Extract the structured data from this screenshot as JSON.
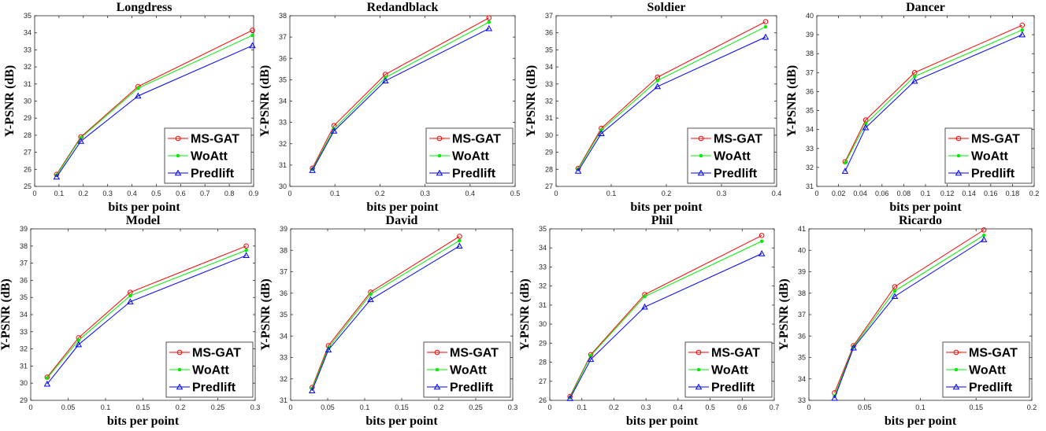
{
  "chart_data": [
    {
      "type": "line",
      "title": "Longdress",
      "xlabel": "bits per point",
      "ylabel": "Y-PSNR (dB)",
      "xlim": [
        0,
        0.9
      ],
      "ylim": [
        25,
        35
      ],
      "xticks": [
        "0",
        "0.1",
        "0.2",
        "0.3",
        "0.4",
        "0.5",
        "0.6",
        "0.7",
        "0.8",
        "0.9"
      ],
      "yticks": [
        "25",
        "26",
        "27",
        "28",
        "29",
        "30",
        "31",
        "32",
        "33",
        "34",
        "35"
      ],
      "legend": "bottom-right",
      "grid": false,
      "series": [
        {
          "name": "MS-GAT",
          "color": "#ff0000",
          "marker": "circle",
          "x": [
            0.09,
            0.19,
            0.425,
            0.895
          ],
          "y": [
            25.7,
            27.9,
            30.85,
            34.15
          ]
        },
        {
          "name": "WoAtt",
          "color": "#00ee00",
          "marker": "dot",
          "x": [
            0.09,
            0.19,
            0.425,
            0.895
          ],
          "y": [
            25.65,
            27.85,
            30.75,
            33.85
          ]
        },
        {
          "name": "Predlift",
          "color": "#0000ff",
          "marker": "triangle",
          "x": [
            0.09,
            0.19,
            0.425,
            0.895
          ],
          "y": [
            25.55,
            27.65,
            30.3,
            33.25
          ]
        }
      ]
    },
    {
      "type": "line",
      "title": "Redandblack",
      "xlabel": "bits per point",
      "ylabel": "Y-PSNR (dB)",
      "xlim": [
        0,
        0.5
      ],
      "ylim": [
        30,
        38
      ],
      "xticks": [
        "0",
        "0.1",
        "0.2",
        "0.3",
        "0.4",
        "0.5"
      ],
      "yticks": [
        "30",
        "31",
        "32",
        "33",
        "34",
        "35",
        "36",
        "37",
        "38"
      ],
      "legend": "bottom-right",
      "grid": false,
      "series": [
        {
          "name": "MS-GAT",
          "color": "#ff0000",
          "marker": "circle",
          "x": [
            0.05,
            0.098,
            0.212,
            0.442
          ],
          "y": [
            30.85,
            32.85,
            35.25,
            37.9
          ]
        },
        {
          "name": "WoAtt",
          "color": "#00ee00",
          "marker": "dot",
          "x": [
            0.05,
            0.098,
            0.212,
            0.442
          ],
          "y": [
            30.8,
            32.7,
            35.1,
            37.7
          ]
        },
        {
          "name": "Predlift",
          "color": "#0000ff",
          "marker": "triangle",
          "x": [
            0.05,
            0.098,
            0.212,
            0.442
          ],
          "y": [
            30.75,
            32.6,
            34.95,
            37.4
          ]
        }
      ]
    },
    {
      "type": "line",
      "title": "Soldier",
      "xlabel": "bits per point",
      "ylabel": "Y-PSNR (dB)",
      "xlim": [
        0,
        0.4
      ],
      "ylim": [
        27,
        37
      ],
      "xticks": [
        "0",
        "0.1",
        "0.2",
        "0.3",
        "0.4"
      ],
      "yticks": [
        "27",
        "28",
        "29",
        "30",
        "31",
        "32",
        "33",
        "34",
        "35",
        "36",
        "37"
      ],
      "legend": "bottom-right",
      "grid": false,
      "series": [
        {
          "name": "MS-GAT",
          "color": "#ff0000",
          "marker": "circle",
          "x": [
            0.04,
            0.082,
            0.184,
            0.38
          ],
          "y": [
            28.05,
            30.4,
            33.4,
            36.65
          ]
        },
        {
          "name": "WoAtt",
          "color": "#00ee00",
          "marker": "dot",
          "x": [
            0.04,
            0.082,
            0.184,
            0.38
          ],
          "y": [
            28.0,
            30.3,
            33.2,
            36.35
          ]
        },
        {
          "name": "Predlift",
          "color": "#0000ff",
          "marker": "triangle",
          "x": [
            0.04,
            0.082,
            0.184,
            0.38
          ],
          "y": [
            27.9,
            30.1,
            32.85,
            35.75
          ]
        }
      ]
    },
    {
      "type": "line",
      "title": "Dancer",
      "xlabel": "bits per point",
      "ylabel": "Y-PSNR (dB)",
      "xlim": [
        0,
        0.2
      ],
      "ylim": [
        31,
        40
      ],
      "xticks": [
        "0",
        "0.02",
        "0.04",
        "0.06",
        "0.08",
        "0.1",
        "0.12",
        "0.14",
        "0.16",
        "0.18",
        "0.2"
      ],
      "yticks": [
        "31",
        "32",
        "33",
        "34",
        "35",
        "36",
        "37",
        "38",
        "39",
        "40"
      ],
      "legend": "bottom-right",
      "grid": false,
      "series": [
        {
          "name": "MS-GAT",
          "color": "#ff0000",
          "marker": "circle",
          "x": [
            0.026,
            0.045,
            0.09,
            0.189
          ],
          "y": [
            32.3,
            34.5,
            37.0,
            39.5
          ]
        },
        {
          "name": "WoAtt",
          "color": "#00ee00",
          "marker": "dot",
          "x": [
            0.026,
            0.045,
            0.09,
            0.189
          ],
          "y": [
            32.25,
            34.3,
            36.8,
            39.25
          ]
        },
        {
          "name": "Predlift",
          "color": "#0000ff",
          "marker": "triangle",
          "x": [
            0.026,
            0.045,
            0.09,
            0.189
          ],
          "y": [
            31.8,
            34.1,
            36.55,
            39.0
          ]
        }
      ]
    },
    {
      "type": "line",
      "title": "Model",
      "xlabel": "bits per point",
      "ylabel": "Y-PSNR (dB)",
      "xlim": [
        0,
        0.3
      ],
      "ylim": [
        29,
        39
      ],
      "xticks": [
        "0",
        "0.05",
        "0.1",
        "0.15",
        "0.2",
        "0.25",
        "0.3"
      ],
      "yticks": [
        "29",
        "30",
        "31",
        "32",
        "33",
        "34",
        "35",
        "36",
        "37",
        "38",
        "39"
      ],
      "legend": "bottom-right",
      "grid": false,
      "series": [
        {
          "name": "MS-GAT",
          "color": "#ff0000",
          "marker": "circle",
          "x": [
            0.022,
            0.064,
            0.133,
            0.288
          ],
          "y": [
            30.35,
            32.65,
            35.3,
            38.0
          ]
        },
        {
          "name": "WoAtt",
          "color": "#00ee00",
          "marker": "dot",
          "x": [
            0.022,
            0.064,
            0.133,
            0.288
          ],
          "y": [
            30.3,
            32.5,
            35.1,
            37.75
          ]
        },
        {
          "name": "Predlift",
          "color": "#0000ff",
          "marker": "triangle",
          "x": [
            0.022,
            0.064,
            0.133,
            0.288
          ],
          "y": [
            29.95,
            32.25,
            34.75,
            37.45
          ]
        }
      ]
    },
    {
      "type": "line",
      "title": "David",
      "xlabel": "bits per point",
      "ylabel": "Y-PSNR (dB)",
      "xlim": [
        0,
        0.3
      ],
      "ylim": [
        31,
        39
      ],
      "xticks": [
        "0",
        "0.05",
        "0.1",
        "0.15",
        "0.2",
        "0.25",
        "0.3"
      ],
      "yticks": [
        "31",
        "32",
        "33",
        "34",
        "35",
        "36",
        "37",
        "38",
        "39"
      ],
      "legend": "bottom-right",
      "grid": false,
      "series": [
        {
          "name": "MS-GAT",
          "color": "#ff0000",
          "marker": "circle",
          "x": [
            0.029,
            0.051,
            0.108,
            0.228
          ],
          "y": [
            31.6,
            33.55,
            36.05,
            38.65
          ]
        },
        {
          "name": "WoAtt",
          "color": "#00ee00",
          "marker": "dot",
          "x": [
            0.029,
            0.051,
            0.108,
            0.228
          ],
          "y": [
            31.55,
            33.45,
            35.95,
            38.45
          ]
        },
        {
          "name": "Predlift",
          "color": "#0000ff",
          "marker": "triangle",
          "x": [
            0.029,
            0.051,
            0.108,
            0.228
          ],
          "y": [
            31.45,
            33.35,
            35.7,
            38.2
          ]
        }
      ]
    },
    {
      "type": "line",
      "title": "Phil",
      "xlabel": "bits per point",
      "ylabel": "Y-PSNR (dB)",
      "xlim": [
        0,
        0.7
      ],
      "ylim": [
        26,
        35
      ],
      "xticks": [
        "0",
        "0.1",
        "0.2",
        "0.3",
        "0.4",
        "0.5",
        "0.6",
        "0.7"
      ],
      "yticks": [
        "26",
        "27",
        "28",
        "29",
        "30",
        "31",
        "32",
        "33",
        "34",
        "35"
      ],
      "legend": "bottom-right",
      "grid": false,
      "series": [
        {
          "name": "MS-GAT",
          "color": "#ff0000",
          "marker": "circle",
          "x": [
            0.063,
            0.128,
            0.296,
            0.661
          ],
          "y": [
            26.2,
            28.4,
            31.55,
            34.65
          ]
        },
        {
          "name": "WoAtt",
          "color": "#00ee00",
          "marker": "dot",
          "x": [
            0.063,
            0.128,
            0.296,
            0.661
          ],
          "y": [
            26.15,
            28.35,
            31.45,
            34.35
          ]
        },
        {
          "name": "Predlift",
          "color": "#0000ff",
          "marker": "triangle",
          "x": [
            0.063,
            0.128,
            0.296,
            0.661
          ],
          "y": [
            26.1,
            28.15,
            30.9,
            33.7
          ]
        }
      ]
    },
    {
      "type": "line",
      "title": "Ricardo",
      "xlabel": "bits per point",
      "ylabel": "Y-PSNR (dB)",
      "xlim": [
        0,
        0.2
      ],
      "ylim": [
        33,
        41
      ],
      "xticks": [
        "0",
        "0.05",
        "0.1",
        "0.15",
        "0.2"
      ],
      "yticks": [
        "33",
        "34",
        "35",
        "36",
        "37",
        "38",
        "39",
        "40",
        "41"
      ],
      "legend": "bottom-right",
      "grid": false,
      "series": [
        {
          "name": "MS-GAT",
          "color": "#ff0000",
          "marker": "circle",
          "x": [
            0.023,
            0.04,
            0.077,
            0.157
          ],
          "y": [
            33.35,
            35.55,
            38.3,
            40.95
          ]
        },
        {
          "name": "WoAtt",
          "color": "#00ee00",
          "marker": "dot",
          "x": [
            0.023,
            0.04,
            0.077,
            0.157
          ],
          "y": [
            33.2,
            35.5,
            38.1,
            40.7
          ]
        },
        {
          "name": "Predlift",
          "color": "#0000ff",
          "marker": "triangle",
          "x": [
            0.023,
            0.04,
            0.077,
            0.157
          ],
          "y": [
            33.1,
            35.45,
            37.85,
            40.5
          ]
        }
      ]
    }
  ]
}
